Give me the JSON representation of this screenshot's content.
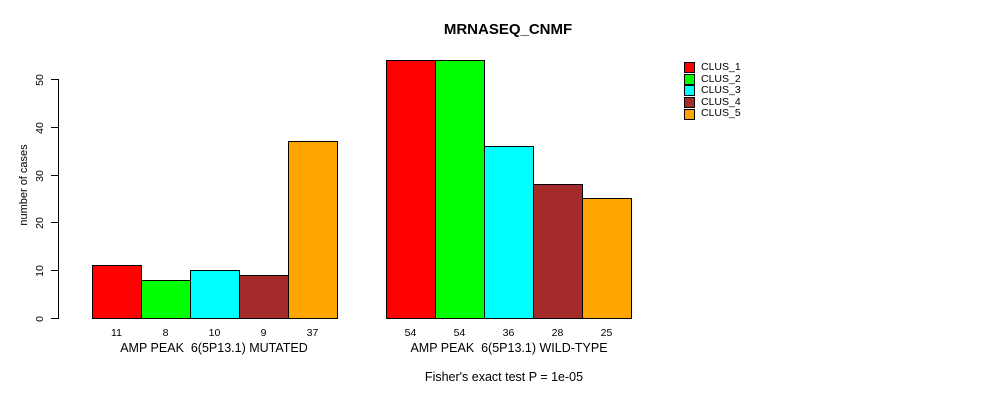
{
  "chart_data": {
    "type": "bar",
    "title": "MRNASEQ_CNMF",
    "ylabel": "number of cases",
    "xlabel": "",
    "yticks": [
      0,
      10,
      20,
      30,
      40,
      50
    ],
    "ylim": [
      0,
      54
    ],
    "grid": false,
    "legend_position": "right",
    "categories": [
      "AMP PEAK  6(5P13.1) MUTATED",
      "AMP PEAK  6(5P13.1) WILD-TYPE"
    ],
    "category_keys": [
      "mutated",
      "wild-type"
    ],
    "series": [
      {
        "name": "CLUS_1",
        "color": "#ff0000",
        "values": [
          11,
          54
        ]
      },
      {
        "name": "CLUS_2",
        "color": "#00ff00",
        "values": [
          8,
          54
        ]
      },
      {
        "name": "CLUS_3",
        "color": "#00ffff",
        "values": [
          10,
          36
        ]
      },
      {
        "name": "CLUS_4",
        "color": "#a52a2a",
        "values": [
          9,
          28
        ]
      },
      {
        "name": "CLUS_5",
        "color": "#ffa500",
        "values": [
          37,
          25
        ]
      }
    ],
    "bar_value_labels": [
      [
        "11",
        "8",
        "10",
        "9",
        "37"
      ],
      [
        "54",
        "54",
        "36",
        "28",
        "25"
      ]
    ],
    "footnote": "Fisher's exact test P = 1e-05"
  },
  "colors": {
    "background": "#ffffff",
    "text": "#000000",
    "bar_border": "#000000"
  }
}
